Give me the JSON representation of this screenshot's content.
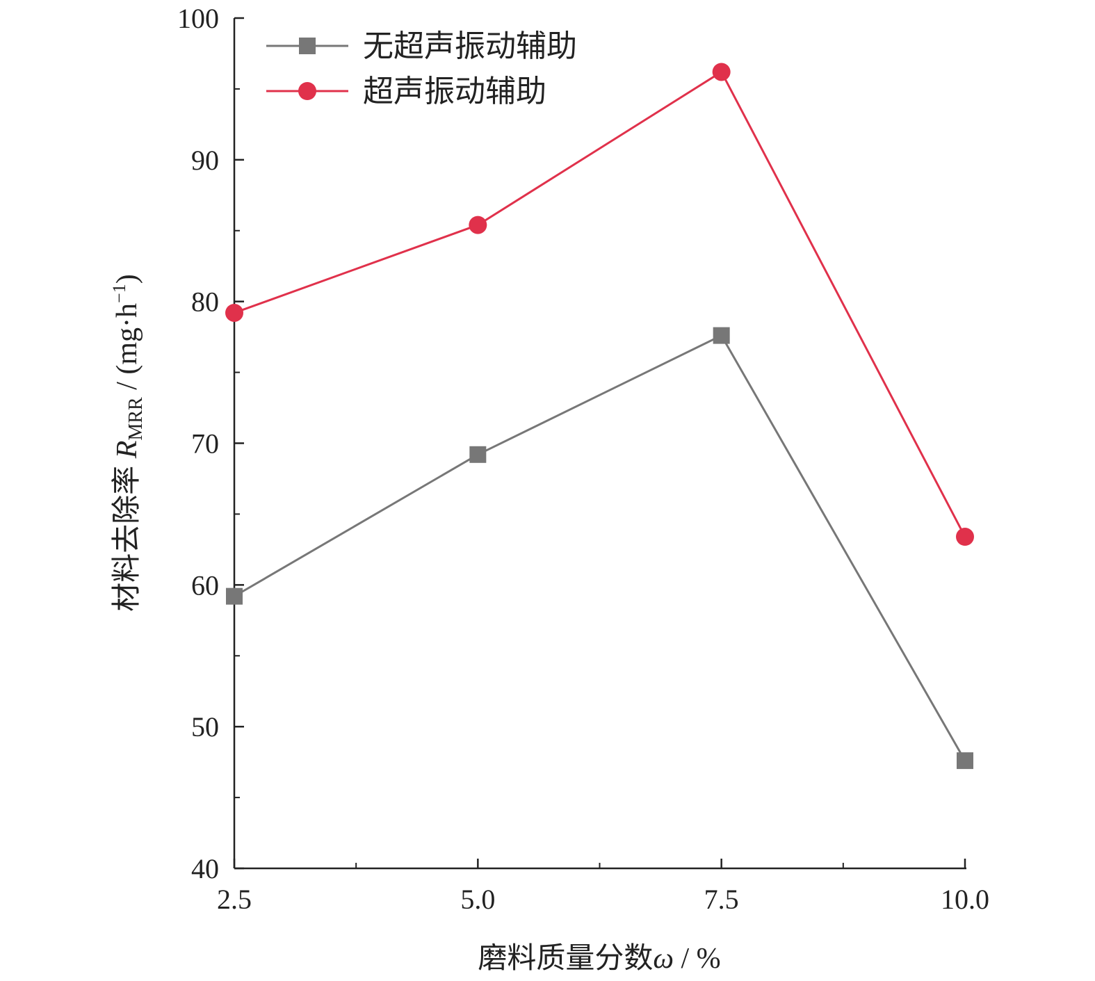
{
  "chart_data": {
    "type": "line",
    "x": [
      2.5,
      5.0,
      7.5,
      10.0
    ],
    "x_tick_labels": [
      "2.5",
      "5.0",
      "7.5",
      "10.0"
    ],
    "y_tick_values": [
      40,
      50,
      60,
      70,
      80,
      90,
      100
    ],
    "y_tick_labels": [
      "40",
      "50",
      "60",
      "70",
      "80",
      "90",
      "100"
    ],
    "xlim": [
      2.5,
      10.0
    ],
    "ylim": [
      40,
      100
    ],
    "xlabel": "磨料质量分数ω / %",
    "ylabel": "材料去除率 R_MRR / (mg·h⁻¹)",
    "ylabel_parts": {
      "main": "材料去除率 ",
      "symbol": "R",
      "subscript": "MRR",
      "unit_open": " / (mg·h",
      "unit_sup": "−1",
      "unit_close": ")"
    },
    "xlabel_parts": {
      "main": "磨料质量分数",
      "symbol": "ω",
      "unit": " / %"
    },
    "grid": false,
    "legend_position": "top-left",
    "series": [
      {
        "name": "无超声振动辅助",
        "values": [
          59.2,
          69.2,
          77.6,
          47.6
        ],
        "color": "#777777",
        "marker": "square"
      },
      {
        "name": "超声振动辅助",
        "values": [
          79.2,
          85.4,
          96.2,
          63.4
        ],
        "color": "#e0314b",
        "marker": "circle"
      }
    ]
  }
}
